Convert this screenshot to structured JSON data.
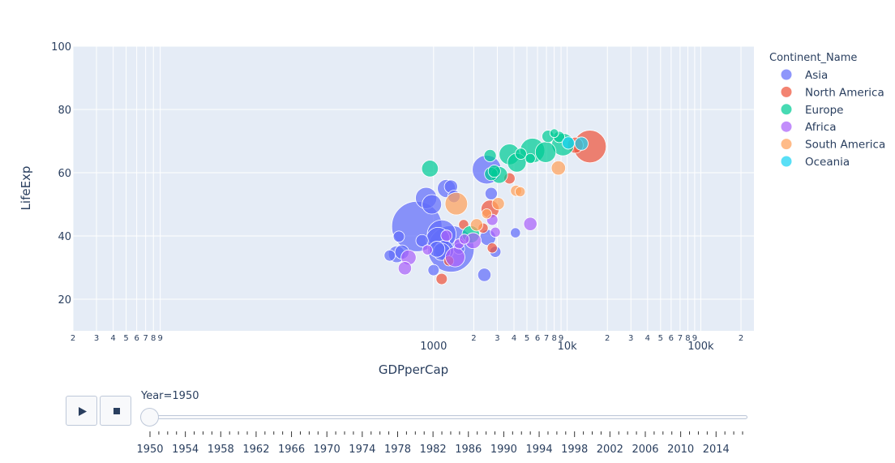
{
  "chart_data": {
    "type": "scatter",
    "xlabel": "GDPperCap",
    "ylabel": "LifeExp",
    "xscale": "log",
    "xlim": [
      2,
      250000
    ],
    "ylim": [
      10,
      100
    ],
    "x_ticks": [
      {
        "value": 2,
        "label": "2"
      },
      {
        "value": 3,
        "label": "3"
      },
      {
        "value": 4,
        "label": "4"
      },
      {
        "value": 5,
        "label": "5"
      },
      {
        "value": 6,
        "label": "6"
      },
      {
        "value": 7,
        "label": "7"
      },
      {
        "value": 8,
        "label": "8"
      },
      {
        "value": 9,
        "label": "9"
      },
      {
        "value": 1000,
        "label": "1000"
      },
      {
        "value": 2000,
        "label": "2"
      },
      {
        "value": 3000,
        "label": "3"
      },
      {
        "value": 4000,
        "label": "4"
      },
      {
        "value": 5000,
        "label": "5"
      },
      {
        "value": 6000,
        "label": "6"
      },
      {
        "value": 7000,
        "label": "7"
      },
      {
        "value": 8000,
        "label": "8"
      },
      {
        "value": 9000,
        "label": "9"
      },
      {
        "value": 10000,
        "label": "10k"
      },
      {
        "value": 20000,
        "label": "2"
      },
      {
        "value": 30000,
        "label": "3"
      },
      {
        "value": 40000,
        "label": "4"
      },
      {
        "value": 50000,
        "label": "5"
      },
      {
        "value": 60000,
        "label": "6"
      },
      {
        "value": 70000,
        "label": "7"
      },
      {
        "value": 80000,
        "label": "8"
      },
      {
        "value": 90000,
        "label": "9"
      },
      {
        "value": 100000,
        "label": "100k"
      },
      {
        "value": 200000,
        "label": "2"
      }
    ],
    "y_ticks": [
      20,
      40,
      60,
      80,
      100
    ],
    "legend": {
      "title": "Continent_Name",
      "placement": "right"
    },
    "grid": true,
    "series": [
      {
        "name": "Asia",
        "color": "#636efa",
        "points": [
          {
            "x": 750,
            "y": 43,
            "size": 1.0
          },
          {
            "x": 1350,
            "y": 35.9,
            "size": 0.85
          },
          {
            "x": 1150,
            "y": 40.5,
            "size": 0.33
          },
          {
            "x": 2500,
            "y": 61,
            "size": 0.33
          },
          {
            "x": 1080,
            "y": 39,
            "size": 0.22
          },
          {
            "x": 880,
            "y": 52,
            "size": 0.18
          },
          {
            "x": 970,
            "y": 50,
            "size": 0.15
          },
          {
            "x": 1250,
            "y": 55,
            "size": 0.13
          },
          {
            "x": 1200,
            "y": 35.5,
            "size": 0.15
          },
          {
            "x": 1150,
            "y": 35,
            "size": 0.12
          },
          {
            "x": 1060,
            "y": 35.8,
            "size": 0.1
          },
          {
            "x": 530,
            "y": 34.2,
            "size": 0.11
          },
          {
            "x": 580,
            "y": 34.9,
            "size": 0.08
          },
          {
            "x": 2550,
            "y": 39.5,
            "size": 0.1
          },
          {
            "x": 2400,
            "y": 27.7,
            "size": 0.07
          },
          {
            "x": 2700,
            "y": 53.4,
            "size": 0.06
          },
          {
            "x": 1350,
            "y": 55.6,
            "size": 0.07
          },
          {
            "x": 1420,
            "y": 52.5,
            "size": 0.06
          },
          {
            "x": 1000,
            "y": 29.2,
            "size": 0.05
          },
          {
            "x": 2900,
            "y": 35,
            "size": 0.05
          },
          {
            "x": 470,
            "y": 33.8,
            "size": 0.05
          },
          {
            "x": 550,
            "y": 39.8,
            "size": 0.05
          },
          {
            "x": 820,
            "y": 38.5,
            "size": 0.06
          },
          {
            "x": 1550,
            "y": 36,
            "size": 0.05
          },
          {
            "x": 4100,
            "y": 41,
            "size": 0.04
          }
        ]
      },
      {
        "name": "North America",
        "color": "#ef553b",
        "points": [
          {
            "x": 14800,
            "y": 68.3,
            "size": 0.42
          },
          {
            "x": 11500,
            "y": 68.7,
            "size": 0.1
          },
          {
            "x": 2650,
            "y": 48.5,
            "size": 0.13
          },
          {
            "x": 3700,
            "y": 58.2,
            "size": 0.05
          },
          {
            "x": 2750,
            "y": 36.2,
            "size": 0.04
          },
          {
            "x": 1680,
            "y": 43.6,
            "size": 0.04
          },
          {
            "x": 1300,
            "y": 32.1,
            "size": 0.04
          },
          {
            "x": 1150,
            "y": 26.4,
            "size": 0.05
          },
          {
            "x": 2350,
            "y": 42.5,
            "size": 0.04
          }
        ]
      },
      {
        "name": "Europe",
        "color": "#00cc96",
        "points": [
          {
            "x": 5500,
            "y": 67,
            "size": 0.24
          },
          {
            "x": 3700,
            "y": 65.8,
            "size": 0.17
          },
          {
            "x": 6900,
            "y": 66.5,
            "size": 0.17
          },
          {
            "x": 9300,
            "y": 68.9,
            "size": 0.2
          },
          {
            "x": 4200,
            "y": 63.2,
            "size": 0.14
          },
          {
            "x": 3100,
            "y": 59.3,
            "size": 0.11
          },
          {
            "x": 940,
            "y": 61.3,
            "size": 0.11
          },
          {
            "x": 1900,
            "y": 40.5,
            "size": 0.12
          },
          {
            "x": 2850,
            "y": 60.5,
            "size": 0.06
          },
          {
            "x": 2700,
            "y": 59.6,
            "size": 0.07
          },
          {
            "x": 2650,
            "y": 65.4,
            "size": 0.06
          },
          {
            "x": 7200,
            "y": 71.5,
            "size": 0.06
          },
          {
            "x": 8700,
            "y": 71.3,
            "size": 0.05
          },
          {
            "x": 4500,
            "y": 66,
            "size": 0.05
          },
          {
            "x": 5300,
            "y": 64.5,
            "size": 0.04
          },
          {
            "x": 8000,
            "y": 72.5,
            "size": 0.03
          }
        ]
      },
      {
        "name": "Africa",
        "color": "#ab63fa",
        "points": [
          {
            "x": 1450,
            "y": 33.3,
            "size": 0.15
          },
          {
            "x": 1980,
            "y": 38.5,
            "size": 0.1
          },
          {
            "x": 650,
            "y": 33.2,
            "size": 0.09
          },
          {
            "x": 5300,
            "y": 43.8,
            "size": 0.07
          },
          {
            "x": 610,
            "y": 29.8,
            "size": 0.07
          },
          {
            "x": 2750,
            "y": 45.1,
            "size": 0.05
          },
          {
            "x": 1250,
            "y": 40.1,
            "size": 0.05
          },
          {
            "x": 1550,
            "y": 37.5,
            "size": 0.04
          },
          {
            "x": 1700,
            "y": 39,
            "size": 0.04
          },
          {
            "x": 900,
            "y": 35.6,
            "size": 0.04
          },
          {
            "x": 2900,
            "y": 41.2,
            "size": 0.04
          }
        ]
      },
      {
        "name": "South America",
        "color": "#ffa15a",
        "points": [
          {
            "x": 1480,
            "y": 50.2,
            "size": 0.2
          },
          {
            "x": 8600,
            "y": 61.5,
            "size": 0.08
          },
          {
            "x": 3050,
            "y": 50.2,
            "size": 0.06
          },
          {
            "x": 4150,
            "y": 54.3,
            "size": 0.05
          },
          {
            "x": 4450,
            "y": 54,
            "size": 0.04
          },
          {
            "x": 2100,
            "y": 43.5,
            "size": 0.06
          },
          {
            "x": 2500,
            "y": 47,
            "size": 0.04
          }
        ]
      },
      {
        "name": "Oceania",
        "color": "#19d3f3",
        "points": [
          {
            "x": 10200,
            "y": 69.4,
            "size": 0.06
          },
          {
            "x": 12800,
            "y": 69.2,
            "size": 0.07
          }
        ]
      }
    ]
  },
  "slider": {
    "current_label": "Year=1950",
    "value": 1950,
    "range": [
      1950,
      2017
    ],
    "tick_labels": [
      "1950",
      "1954",
      "1958",
      "1962",
      "1966",
      "1970",
      "1974",
      "1978",
      "1982",
      "1986",
      "1990",
      "1994",
      "1998",
      "2002",
      "2006",
      "2010",
      "2014"
    ]
  },
  "controls": {
    "play_icon": "play-icon",
    "stop_icon": "stop-icon"
  }
}
